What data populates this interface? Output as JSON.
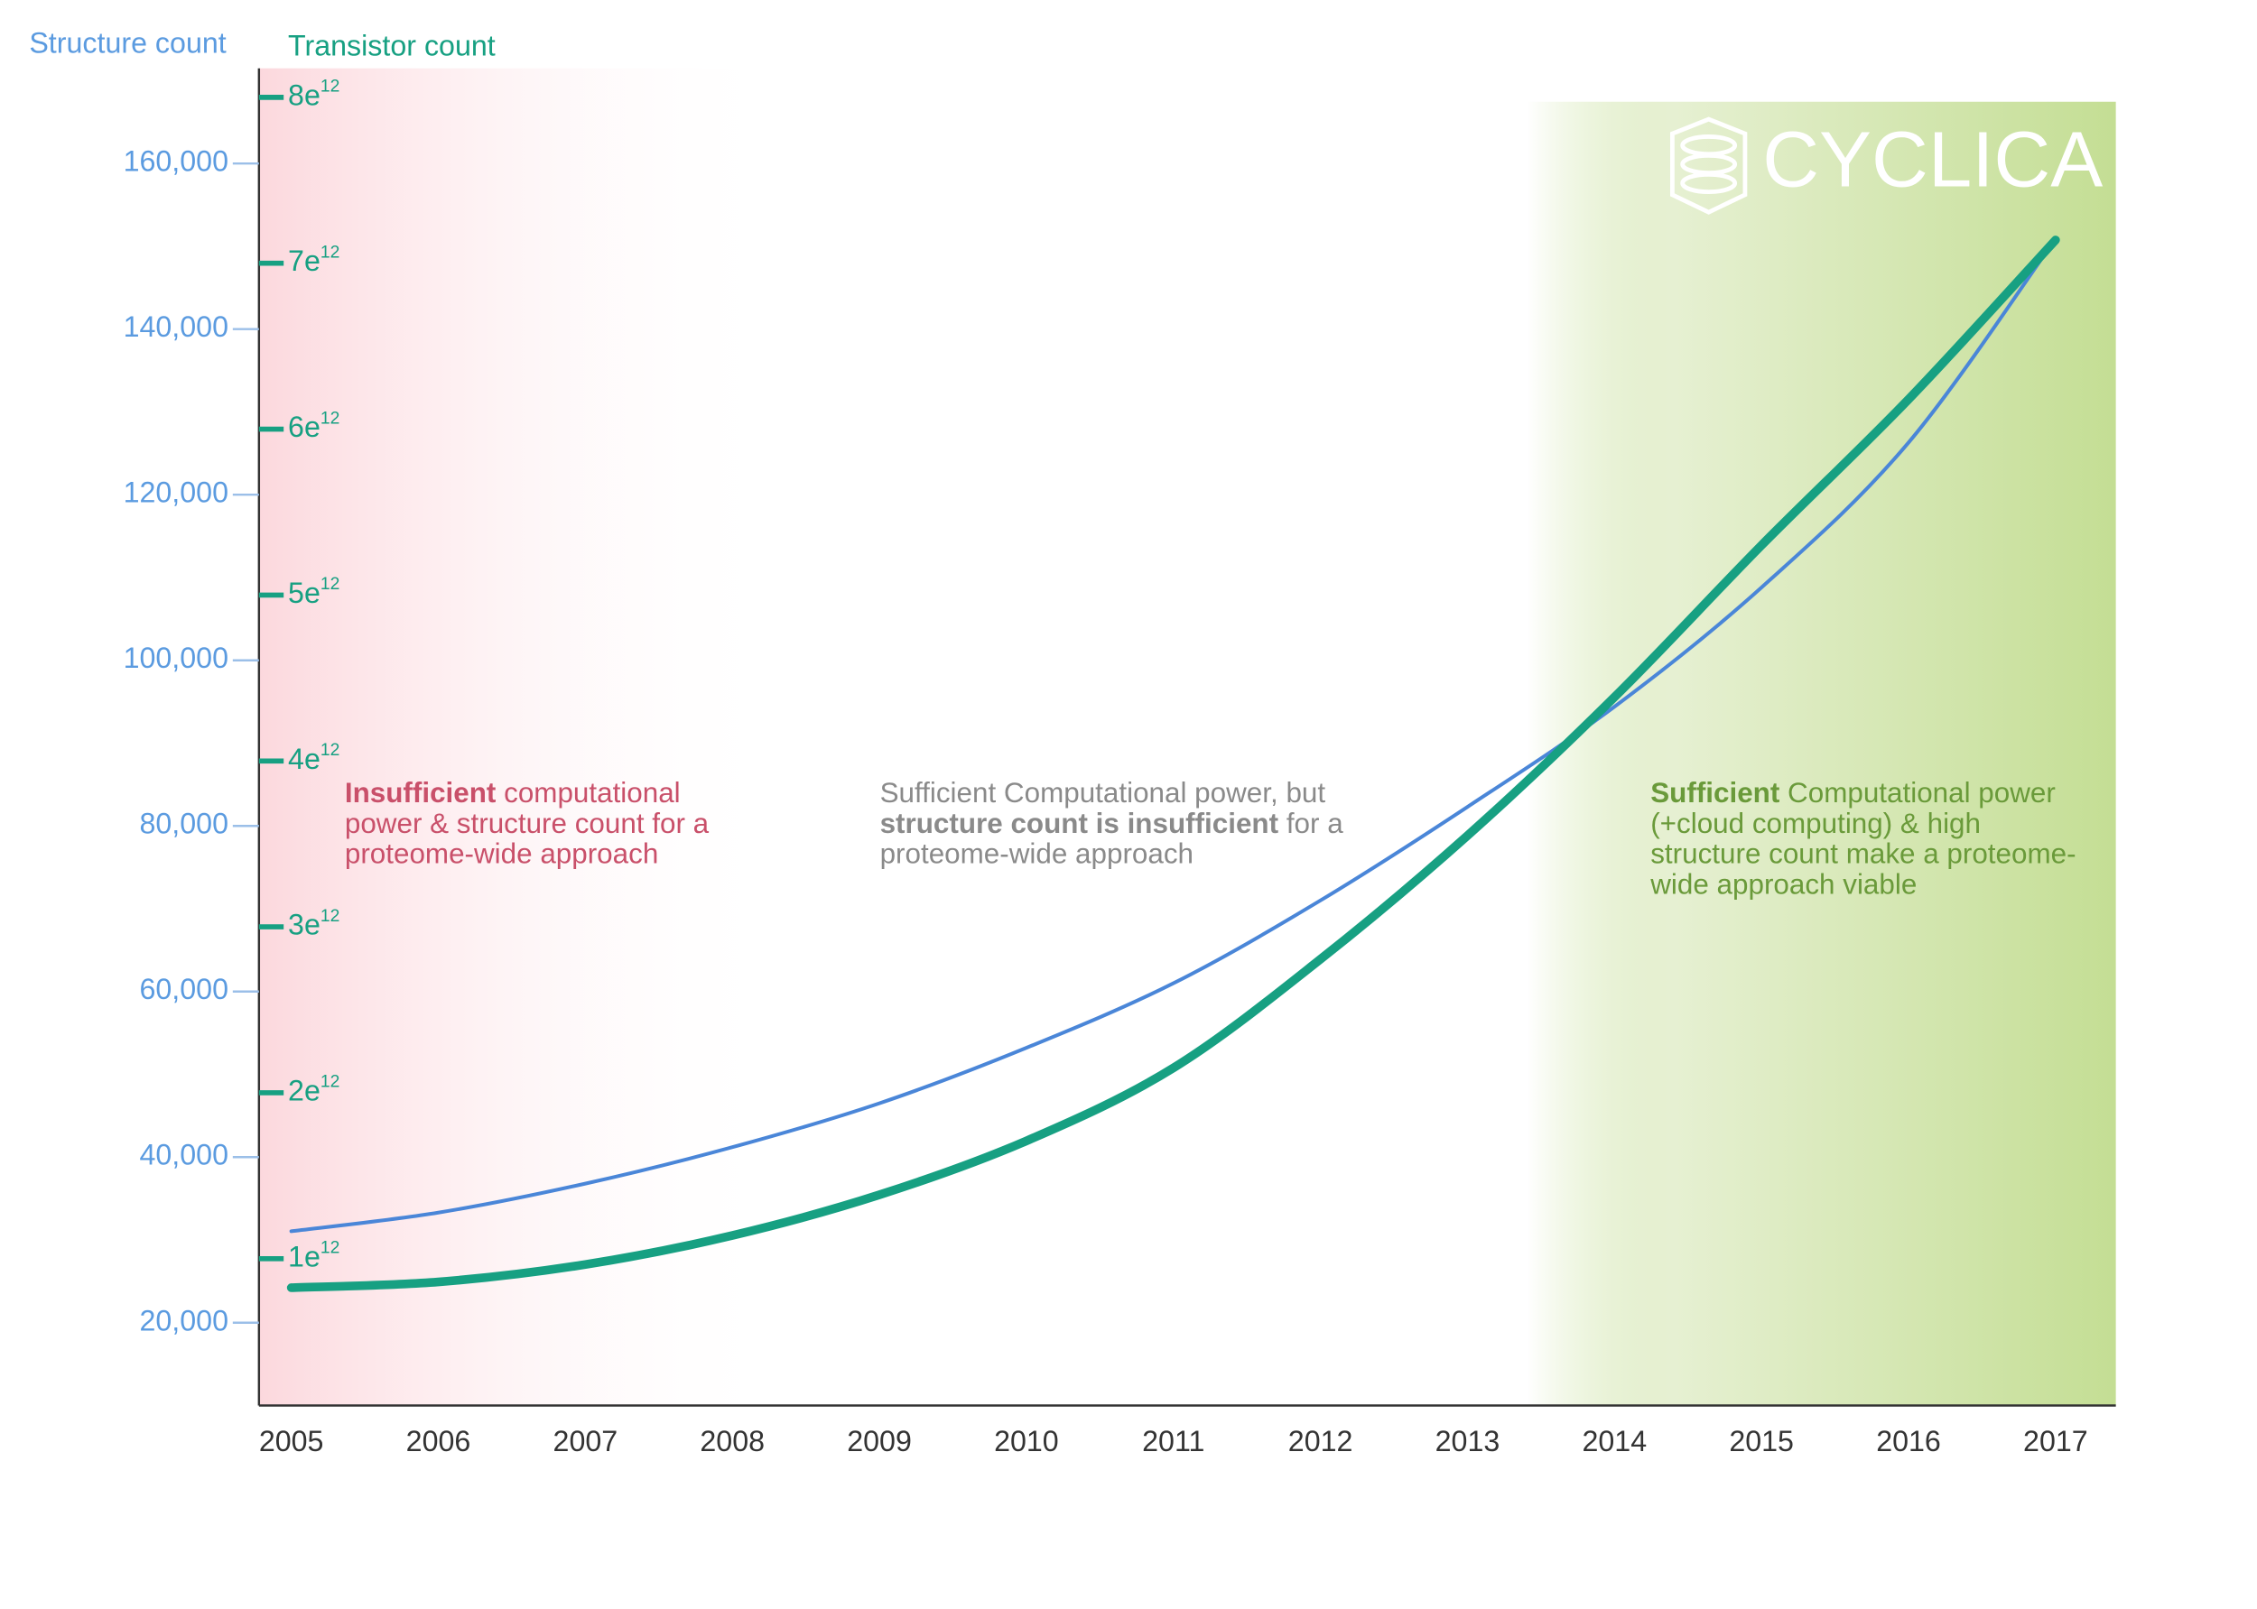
{
  "chart_data": {
    "type": "line",
    "y_label": "Structure count",
    "y2_label": "Transistor count",
    "x": [
      2005,
      2006,
      2007,
      2008,
      2009,
      2010,
      2011,
      2012,
      2013,
      2014,
      2015,
      2016,
      2017
    ],
    "xlim": [
      2004.78,
      2017.41
    ],
    "xticks": [
      2005,
      2006,
      2007,
      2008,
      2009,
      2010,
      2011,
      2012,
      2013,
      2014,
      2015,
      2016,
      2017
    ],
    "ylim": [
      10000,
      171500
    ],
    "yticks": [
      {
        "value": 20000,
        "label": "20,000"
      },
      {
        "value": 40000,
        "label": "40,000"
      },
      {
        "value": 60000,
        "label": "60,000"
      },
      {
        "value": 80000,
        "label": "80,000"
      },
      {
        "value": 100000,
        "label": "100,000"
      },
      {
        "value": 120000,
        "label": "120,000"
      },
      {
        "value": 140000,
        "label": "140,000"
      },
      {
        "value": 160000,
        "label": "160,000"
      }
    ],
    "y2lim": [
      115000000000,
      8175000000000
    ],
    "y2ticks": [
      {
        "value": 1000000000000,
        "label": "1e12"
      },
      {
        "value": 2000000000000,
        "label": "2e12"
      },
      {
        "value": 3000000000000,
        "label": "3e12"
      },
      {
        "value": 4000000000000,
        "label": "4e12"
      },
      {
        "value": 5000000000000,
        "label": "5e12"
      },
      {
        "value": 6000000000000,
        "label": "6e12"
      },
      {
        "value": 7000000000000,
        "label": "7e12"
      },
      {
        "value": 8000000000000,
        "label": "8e12"
      }
    ],
    "series": [
      {
        "name": "Structure count",
        "color": "#4a86d8",
        "axis": "y",
        "values": [
          31050,
          33300,
          36800,
          41200,
          46500,
          53200,
          61000,
          71000,
          82300,
          94400,
          108800,
          126300,
          150900
        ]
      },
      {
        "name": "Transistor count",
        "color": "#17a082",
        "axis": "y2",
        "values": [
          825000000000,
          860000000000,
          965000000000,
          1140000000000,
          1385000000000,
          1710000000000,
          2150000000000,
          2805000000000,
          3550000000000,
          4385000000000,
          5300000000000,
          6180000000000,
          7140000000000
        ]
      }
    ],
    "annotations": [
      {
        "color": "#c9506a",
        "parts": [
          {
            "text": "Insufficient",
            "bold": true
          },
          {
            "text": " computational power & structure count for a proteome-wide approach",
            "bold": false
          }
        ]
      },
      {
        "color": "#8a8a8a",
        "parts": [
          {
            "text": "Sufficient Computational power, but ",
            "bold": false
          },
          {
            "text": "structure count is insufficient",
            "bold": true
          },
          {
            "text": " for a proteome-wide approach",
            "bold": false
          }
        ]
      },
      {
        "color": "#6a9a3a",
        "parts": [
          {
            "text": "Sufficient",
            "bold": true
          },
          {
            "text": " Computational power (+cloud computing) & high structure count make a proteome-wide approach viable",
            "bold": false
          }
        ]
      }
    ]
  },
  "logo": {
    "text": "CYCLICA"
  }
}
